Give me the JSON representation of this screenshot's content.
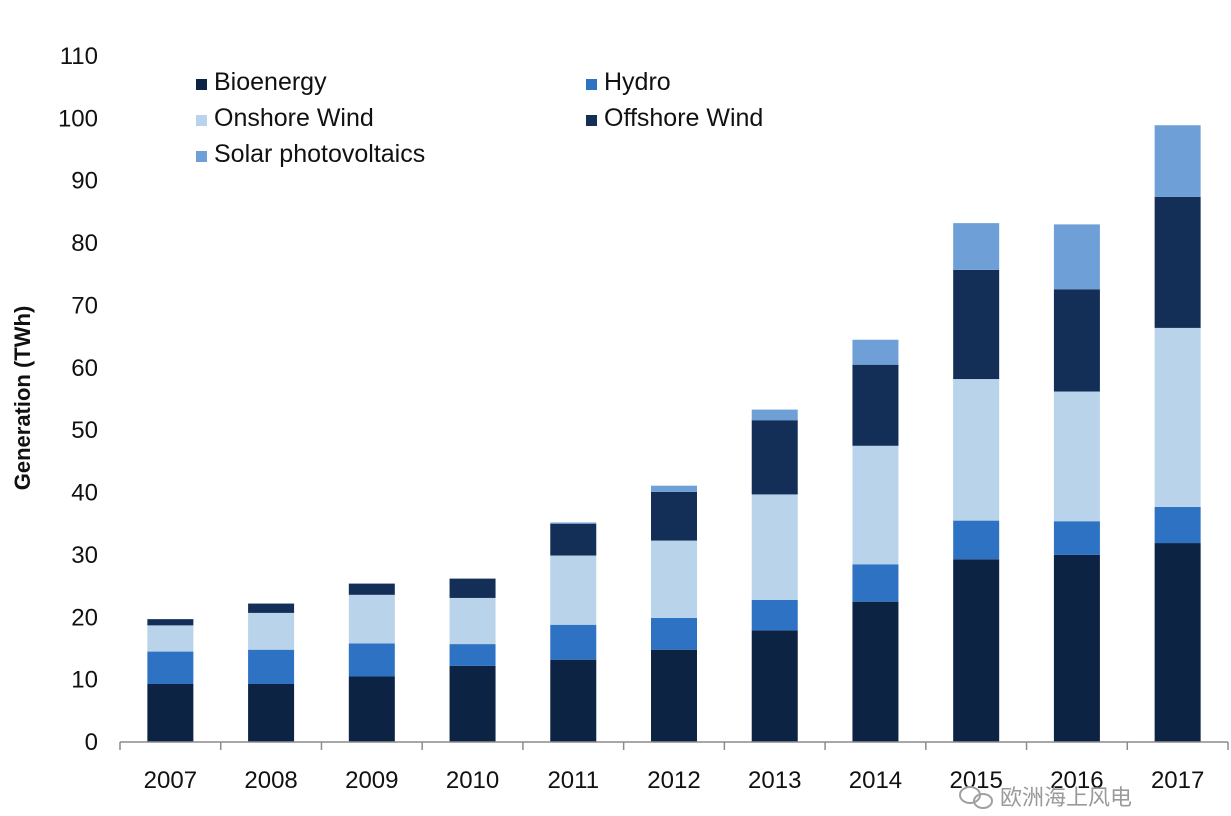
{
  "chart_data": {
    "type": "bar",
    "stacked": true,
    "categories": [
      "2007",
      "2008",
      "2009",
      "2010",
      "2011",
      "2012",
      "2013",
      "2014",
      "2015",
      "2016",
      "2017"
    ],
    "series": [
      {
        "name": "Bioenergy",
        "color": "#0c2344",
        "values": [
          9.3,
          9.3,
          10.5,
          12.2,
          13.2,
          14.8,
          17.9,
          22.5,
          29.3,
          30.0,
          31.9
        ]
      },
      {
        "name": "Hydro",
        "color": "#2e72c4",
        "values": [
          5.2,
          5.5,
          5.3,
          3.5,
          5.6,
          5.1,
          4.9,
          6.0,
          6.2,
          5.4,
          5.8
        ]
      },
      {
        "name": "Onshore Wind",
        "color": "#b8d3ea",
        "values": [
          4.2,
          5.9,
          7.8,
          7.4,
          11.1,
          12.4,
          16.9,
          19.0,
          22.7,
          20.8,
          28.7
        ]
      },
      {
        "name": "Offshore Wind",
        "color": "#132e57",
        "values": [
          1.0,
          1.5,
          1.8,
          3.1,
          5.1,
          7.8,
          11.9,
          13.0,
          17.5,
          16.4,
          21.0
        ]
      },
      {
        "name": "Solar photovoltaics",
        "color": "#6f9fd7",
        "values": [
          0.0,
          0.0,
          0.0,
          0.0,
          0.2,
          1.0,
          1.7,
          4.0,
          7.5,
          10.4,
          11.5
        ]
      }
    ],
    "ylabel": "Generation (TWh)",
    "ylim": [
      0,
      110
    ],
    "yticks": [
      0,
      10,
      20,
      30,
      40,
      50,
      60,
      70,
      80,
      90,
      100,
      110
    ],
    "legend": "top-left, inside plot, two columns",
    "grid": false
  },
  "watermark": "欧洲海上风电"
}
